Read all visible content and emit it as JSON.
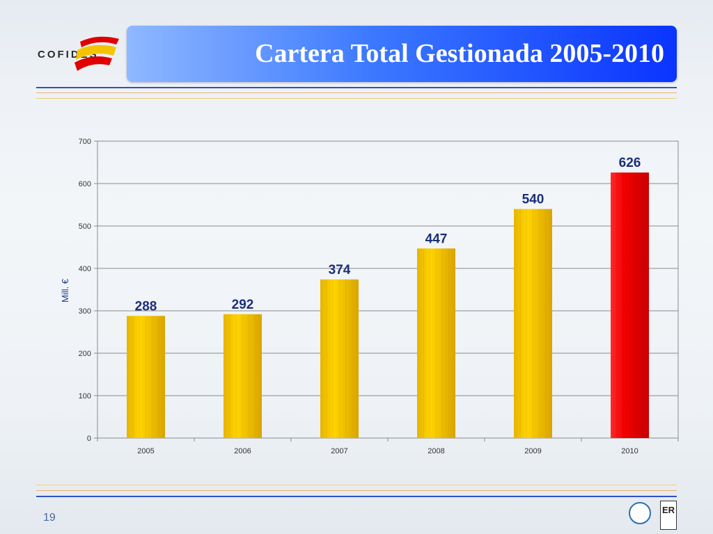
{
  "slide": {
    "title": "Cartera Total Gestionada 2005-2010",
    "page_number": "19"
  },
  "logo": {
    "text": "COFIDES",
    "icon": "flag-stripes-logo"
  },
  "badges": [
    {
      "name": "global-compact-seal-icon"
    },
    {
      "name": "aenor-er-certification-icon",
      "text": "ER"
    }
  ],
  "colors": {
    "title_bar_start": "#8fb8ff",
    "title_bar_end": "#0a34ff",
    "bar_default": "#f2c300",
    "bar_highlight": "#ee0000",
    "data_label": "#1c2f7a",
    "rule_blue": "#3050c8",
    "rule_yellow": "#e8c860"
  },
  "chart_data": {
    "type": "bar",
    "categories": [
      "2005",
      "2006",
      "2007",
      "2008",
      "2009",
      "2010"
    ],
    "values": [
      288,
      292,
      374,
      447,
      540,
      626
    ],
    "highlight_index": 5,
    "title": "",
    "xlabel": "",
    "ylabel": "Mill. €",
    "ylim": [
      0,
      700
    ],
    "yticks": [
      0,
      100,
      200,
      300,
      400,
      500,
      600,
      700
    ],
    "grid": true,
    "legend": "none",
    "data_labels": true
  }
}
